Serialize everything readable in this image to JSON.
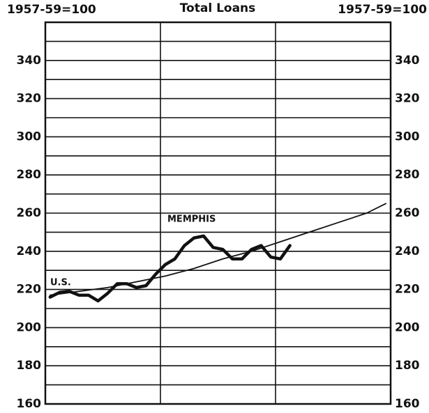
{
  "chart_data": {
    "type": "line",
    "title": "Total Loans",
    "y_label_left": "1957-59=100",
    "y_label_right": "1957-59=100",
    "xlim": [
      0,
      36
    ],
    "ylim": [
      160,
      360
    ],
    "yticks": [
      160,
      180,
      200,
      220,
      240,
      260,
      280,
      300,
      320,
      340
    ],
    "y_minor_gridlines": [
      170,
      190,
      210,
      230,
      250,
      270,
      290,
      310,
      330,
      350
    ],
    "x_gridlines": [
      12,
      24
    ],
    "grid": true,
    "series": [
      {
        "name": "MEMPHIS",
        "color": "#111111",
        "width": 4.5,
        "x": [
          0.5,
          1.5,
          2.5,
          3.5,
          4.5,
          5.5,
          6.5,
          7.5,
          8.5,
          9.5,
          10.5,
          11.5,
          12.5,
          13.5,
          14.5,
          15.5,
          16.5,
          17.5,
          18.5,
          19.5,
          20.5,
          21.5,
          22.5,
          23.5,
          24.5,
          25.5
        ],
        "values": [
          216,
          218.5,
          219,
          217,
          217,
          214,
          218,
          223,
          223,
          221,
          222,
          228,
          233,
          236,
          243,
          247,
          248,
          242,
          241,
          236,
          236,
          241,
          243,
          237,
          236,
          243
        ]
      },
      {
        "name": "U.S.",
        "color": "#111111",
        "width": 1.8,
        "x": [
          0.5,
          3.5,
          6.5,
          9.5,
          12.5,
          15.5,
          18.5,
          21.5,
          24.5,
          27.5,
          30.5,
          33.5,
          35.5
        ],
        "values": [
          217,
          219,
          221,
          224,
          227,
          231,
          236,
          240,
          245,
          250,
          255,
          260,
          265
        ]
      }
    ]
  }
}
